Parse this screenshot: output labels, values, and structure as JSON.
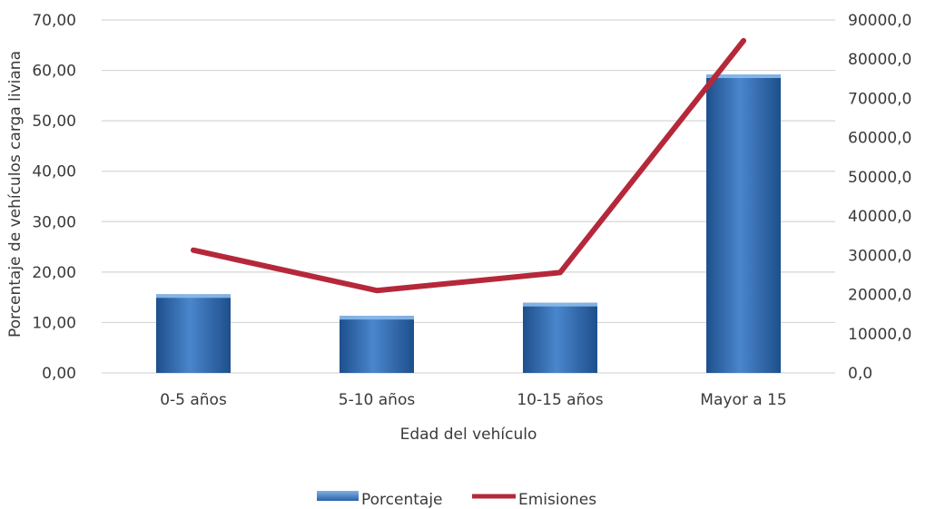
{
  "chart_data": {
    "type": "bar",
    "categories": [
      "0-5 años",
      "5-10 años",
      "10-15 años",
      "Mayor a 15"
    ],
    "series": [
      {
        "name": "Porcentaje",
        "type": "bar",
        "axis": "left",
        "color": "#2f6db3",
        "values": [
          15.6,
          11.3,
          13.9,
          59.2
        ]
      },
      {
        "name": "Emisiones",
        "type": "line",
        "axis": "right",
        "color": "#b5283a",
        "values": [
          31300,
          21000,
          25600,
          84700
        ]
      }
    ],
    "xlabel": "Edad del vehículo",
    "ylabel": "Porcentaje de vehículos carga liviana",
    "y2label": "",
    "ylim": [
      0,
      70
    ],
    "y2lim": [
      0,
      90000
    ],
    "yticks": [
      "0,00",
      "10,00",
      "20,00",
      "30,00",
      "40,00",
      "50,00",
      "60,00",
      "70,00"
    ],
    "y2ticks": [
      "0,0",
      "10000,0",
      "20000,0",
      "30000,0",
      "40000,0",
      "50000,0",
      "60000,0",
      "70000,0",
      "80000,0",
      "90000,0"
    ],
    "grid": true,
    "legend_position": "bottom-center"
  }
}
